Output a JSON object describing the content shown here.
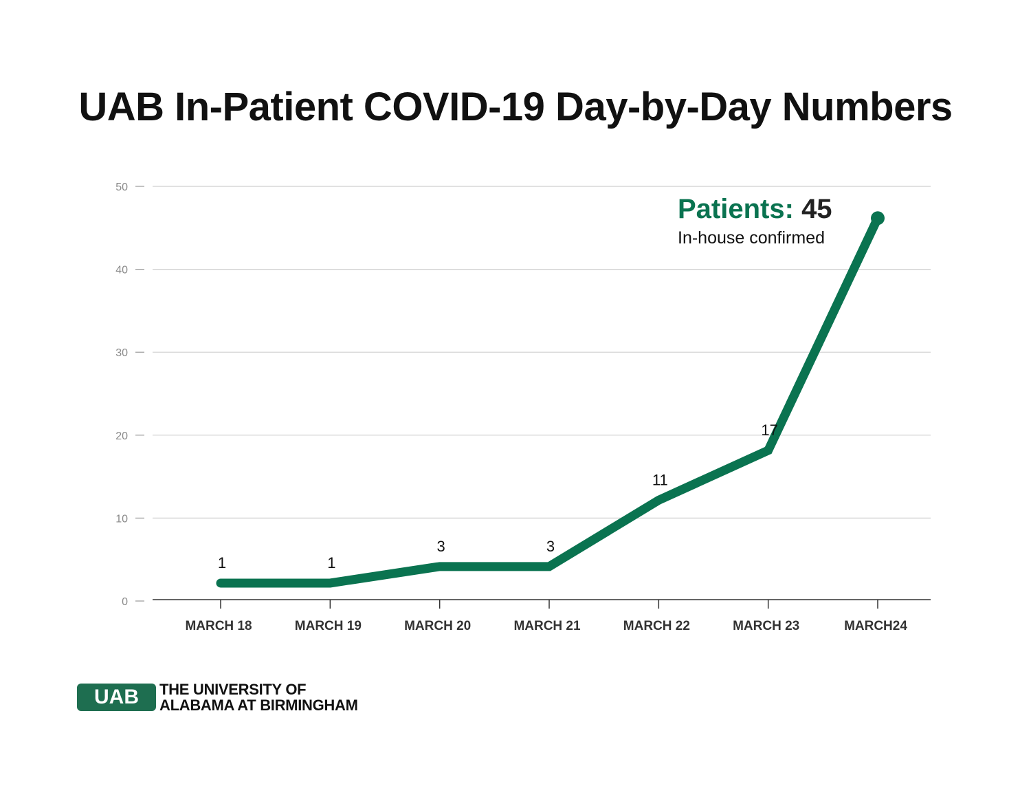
{
  "title": "UAB In-Patient COVID-19 Day-by-Day Numbers",
  "chart_data": {
    "type": "line",
    "title": "UAB In-Patient COVID-19 Day-by-Day Numbers",
    "categories": [
      "MARCH 18",
      "MARCH 19",
      "MARCH 20",
      "MARCH 21",
      "MARCH 22",
      "MARCH 23",
      "MARCH24"
    ],
    "series": [
      {
        "name": "Patients",
        "values": [
          1,
          1,
          3,
          3,
          11,
          17,
          45
        ]
      }
    ],
    "data_labels": [
      "1",
      "1",
      "3",
      "3",
      "11",
      "17",
      ""
    ],
    "xlabel": "",
    "ylabel": "",
    "ylim": [
      0,
      50
    ],
    "yticks": [
      0,
      10,
      20,
      30,
      40,
      50
    ],
    "grid": true,
    "legend": "none",
    "line_color": "#0a7350"
  },
  "annotation": {
    "key": "Patients:",
    "value": "45",
    "subtitle": "In-house confirmed"
  },
  "logo": {
    "mark": "UAB",
    "line1": "THE UNIVERSITY OF",
    "line2": "ALABAMA AT BIRMINGHAM",
    "color": "#1e6e50"
  }
}
